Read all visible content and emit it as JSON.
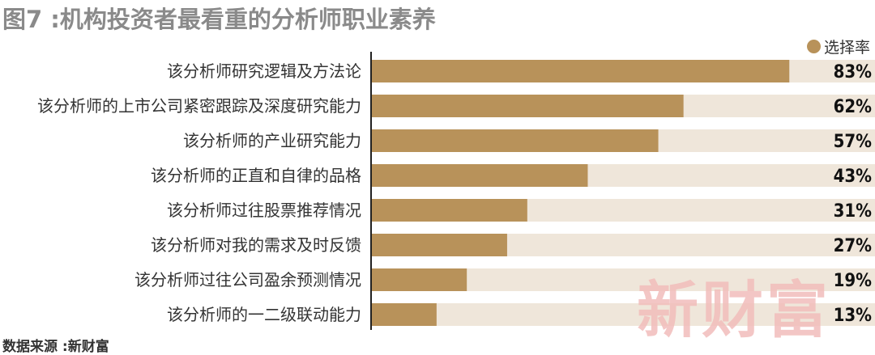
{
  "title": "图7 :机构投资者最看重的分析师职业素养",
  "source": "数据来源 :新财富",
  "watermark": "新财富",
  "colors": {
    "bar": "#b8925a",
    "track": "#efe6da",
    "axis": "#222222",
    "label": "#333333",
    "value": "#111111"
  },
  "chart_data": {
    "type": "bar",
    "orientation": "horizontal",
    "xlim": [
      0,
      100
    ],
    "legend": {
      "name": "选择率",
      "placement": "top-right"
    },
    "categories": [
      "该分析师研究逻辑及方法论",
      "该分析师的上市公司紧密跟踪及深度研究能力",
      "该分析师的产业研究能力",
      "该分析师的正直和自律的品格",
      "该分析师过往股票推荐情况",
      "该分析师对我的需求及时反馈",
      "该分析师过往公司盈余预测情况",
      "该分析师的一二级联动能力"
    ],
    "values": [
      83,
      62,
      57,
      43,
      31,
      27,
      19,
      13
    ],
    "value_labels": [
      "83%",
      "62%",
      "57%",
      "43%",
      "31%",
      "27%",
      "19%",
      "13%"
    ]
  }
}
